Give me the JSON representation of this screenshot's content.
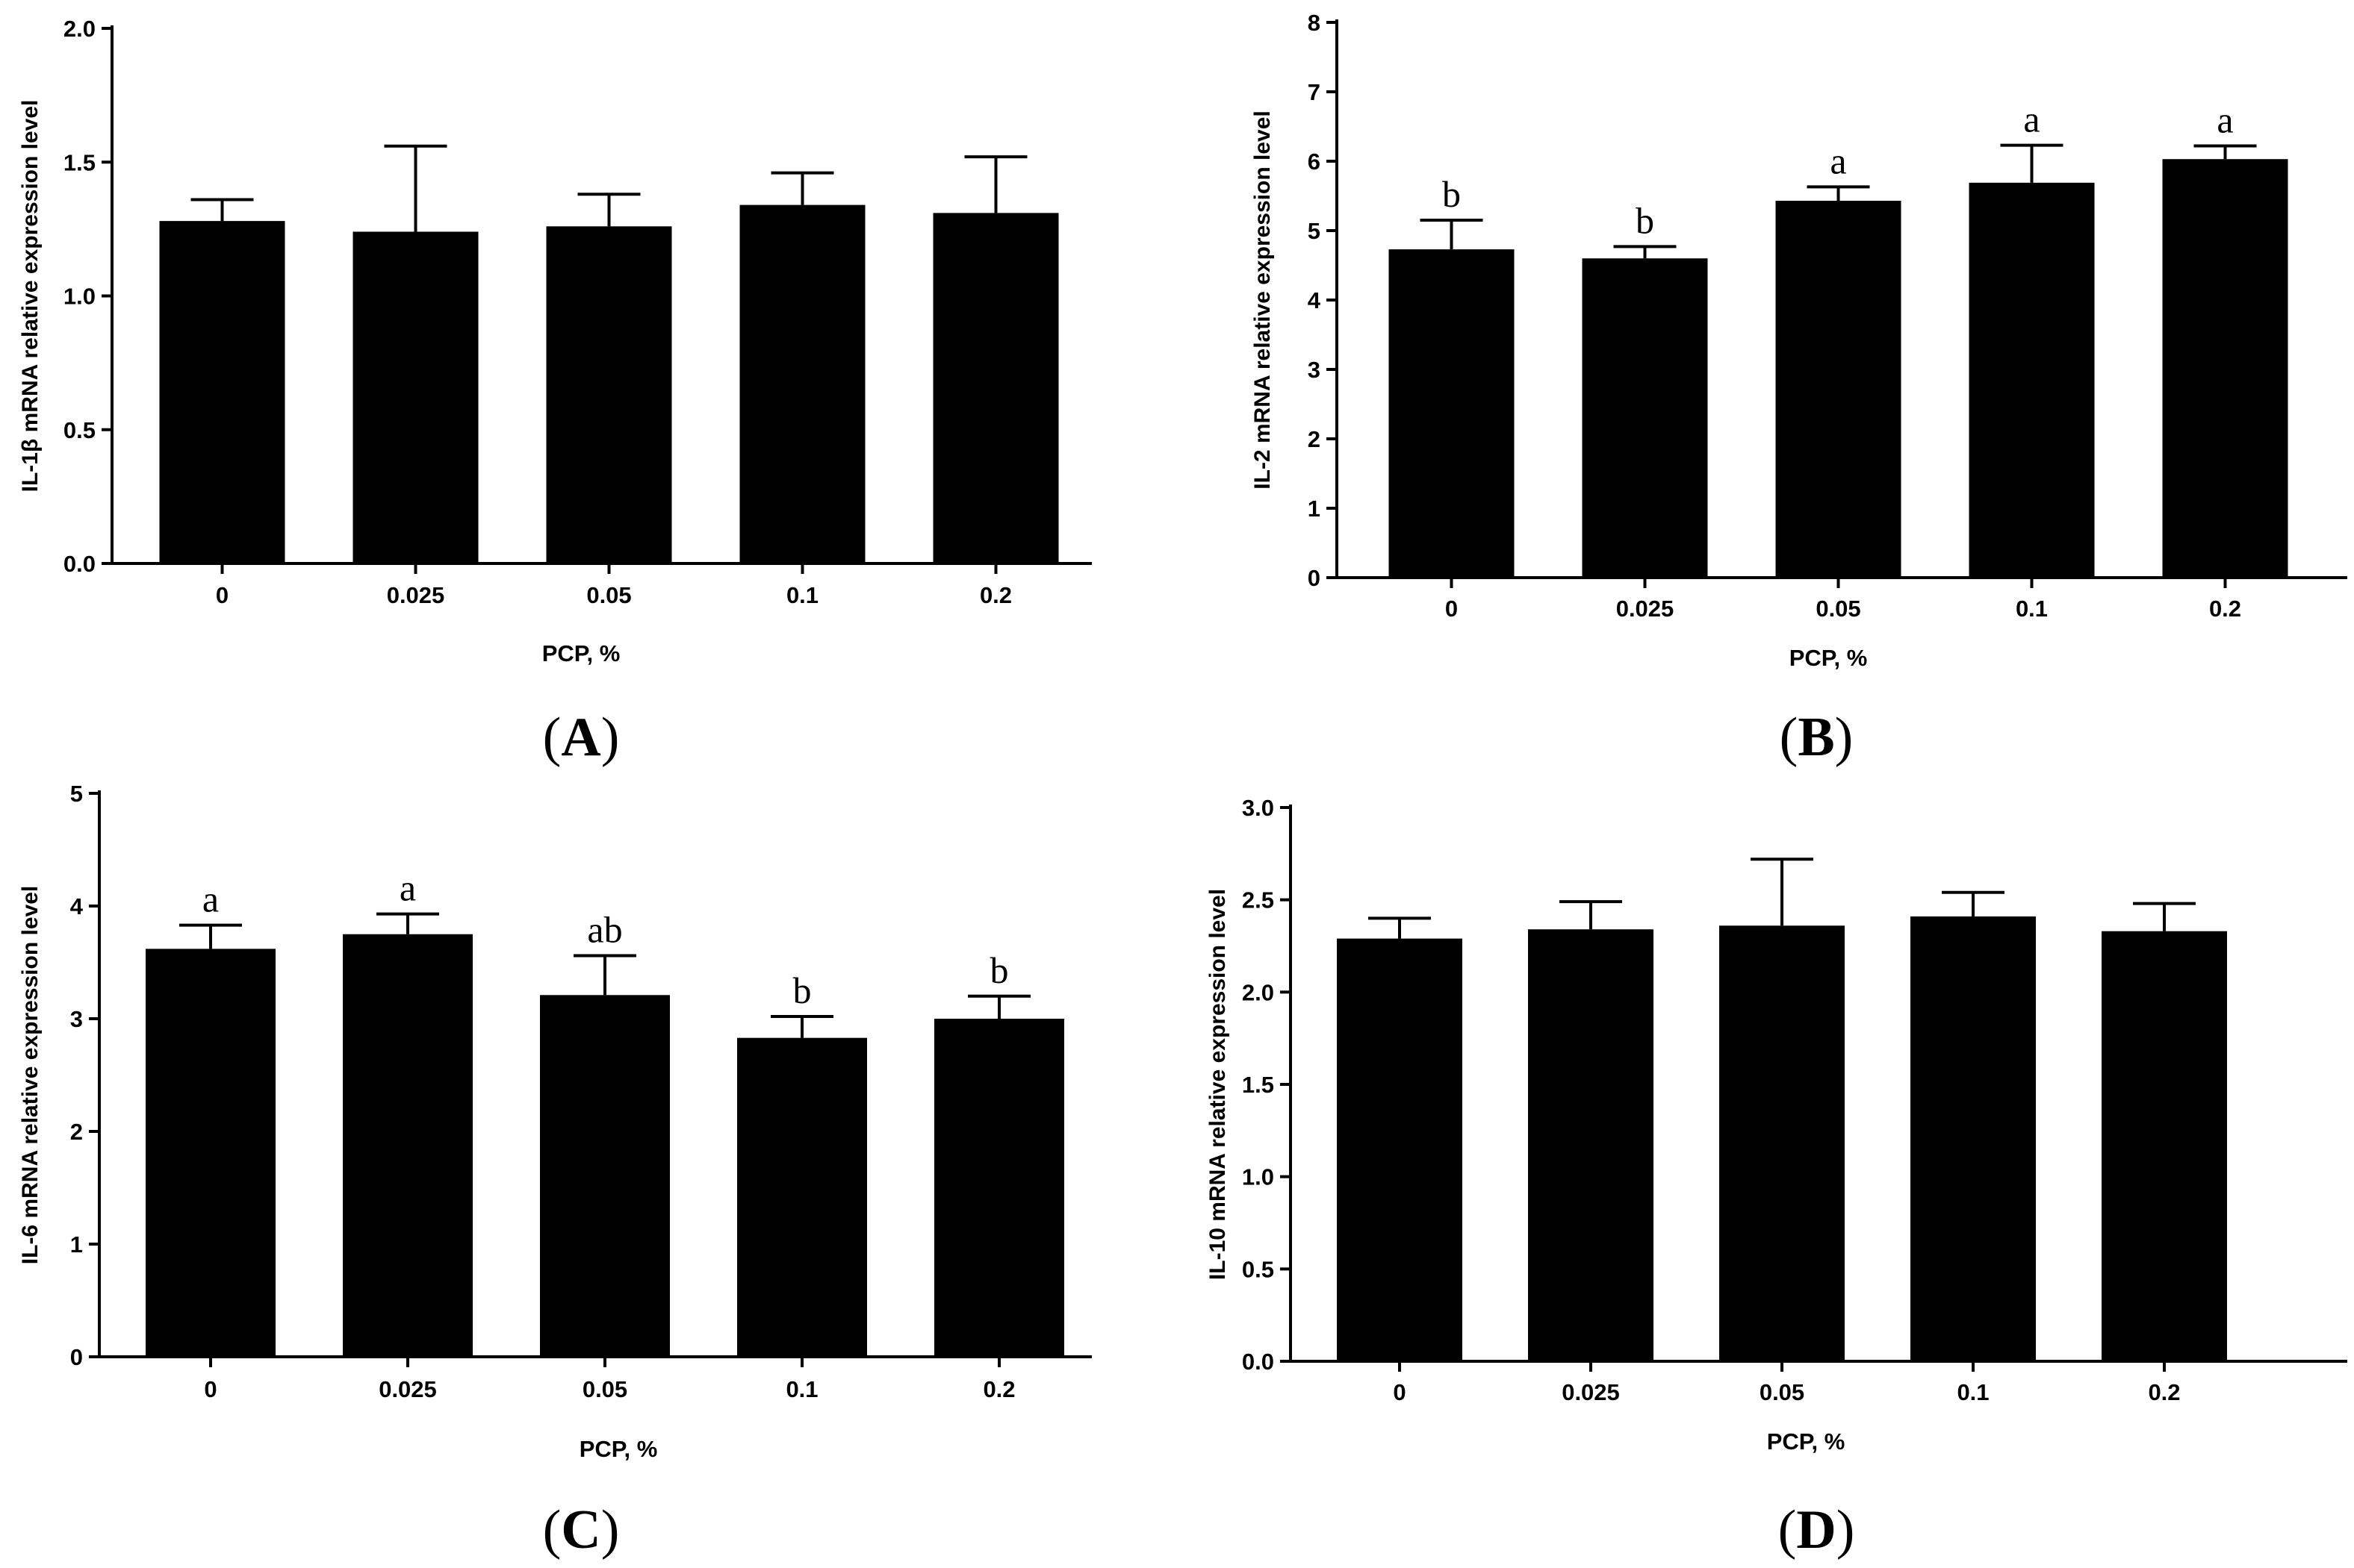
{
  "chart_data": [
    {
      "type": "bar",
      "panel_label": "A",
      "categories": [
        "0",
        "0.025",
        "0.05",
        "0.1",
        "0.2"
      ],
      "values": [
        1.28,
        1.24,
        1.26,
        1.34,
        1.31
      ],
      "errors": [
        0.08,
        0.32,
        0.12,
        0.12,
        0.21
      ],
      "significance": [
        "",
        "",
        "",
        "",
        ""
      ],
      "xlabel": "PCP, %",
      "ylabel": "IL-1β mRNA relative expression level",
      "ylim": [
        0,
        2.0
      ],
      "yticks": [
        0.0,
        0.5,
        1.0,
        1.5,
        2.0
      ],
      "ytick_labels": [
        "0.0",
        "0.5",
        "1.0",
        "1.5",
        "2.0"
      ],
      "bar_color": "#000000"
    },
    {
      "type": "bar",
      "panel_label": "B",
      "categories": [
        "0",
        "0.025",
        "0.05",
        "0.1",
        "0.2"
      ],
      "values": [
        4.73,
        4.6,
        5.43,
        5.69,
        6.03
      ],
      "errors": [
        0.42,
        0.17,
        0.2,
        0.54,
        0.19
      ],
      "significance": [
        "b",
        "b",
        "a",
        "a",
        "a"
      ],
      "xlabel": "PCP, %",
      "ylabel": "IL-2 mRNA relative expression level",
      "ylim": [
        0,
        8
      ],
      "yticks": [
        0,
        1,
        2,
        3,
        4,
        5,
        6,
        7,
        8
      ],
      "ytick_labels": [
        "0",
        "1",
        "2",
        "3",
        "4",
        "5",
        "6",
        "7",
        "8"
      ],
      "bar_color": "#000000"
    },
    {
      "type": "bar",
      "panel_label": "C",
      "categories": [
        "0",
        "0.025",
        "0.05",
        "0.1",
        "0.2"
      ],
      "values": [
        3.62,
        3.75,
        3.21,
        2.83,
        3.0
      ],
      "errors": [
        0.21,
        0.18,
        0.35,
        0.19,
        0.2
      ],
      "significance": [
        "a",
        "a",
        "ab",
        "b",
        "b"
      ],
      "xlabel": "PCP, %",
      "ylabel": "IL-6 mRNA relative expression level",
      "ylim": [
        0,
        5
      ],
      "yticks": [
        0,
        1,
        2,
        3,
        4,
        5
      ],
      "ytick_labels": [
        "0",
        "1",
        "2",
        "3",
        "4",
        "5"
      ],
      "bar_color": "#000000"
    },
    {
      "type": "bar",
      "panel_label": "D",
      "categories": [
        "0",
        "0.025",
        "0.05",
        "0.1",
        "0.2"
      ],
      "values": [
        2.29,
        2.34,
        2.36,
        2.41,
        2.33
      ],
      "errors": [
        0.11,
        0.15,
        0.36,
        0.13,
        0.15
      ],
      "significance": [
        "",
        "",
        "",
        "",
        ""
      ],
      "xlabel": "PCP, %",
      "ylabel": "IL-10 mRNA relative expression level",
      "ylim": [
        0,
        3.0
      ],
      "yticks": [
        0.0,
        0.5,
        1.0,
        1.5,
        2.0,
        2.5,
        3.0
      ],
      "ytick_labels": [
        "0.0",
        "0.5",
        "1.0",
        "1.5",
        "2.0",
        "2.5",
        "3.0"
      ],
      "bar_color": "#000000"
    }
  ]
}
